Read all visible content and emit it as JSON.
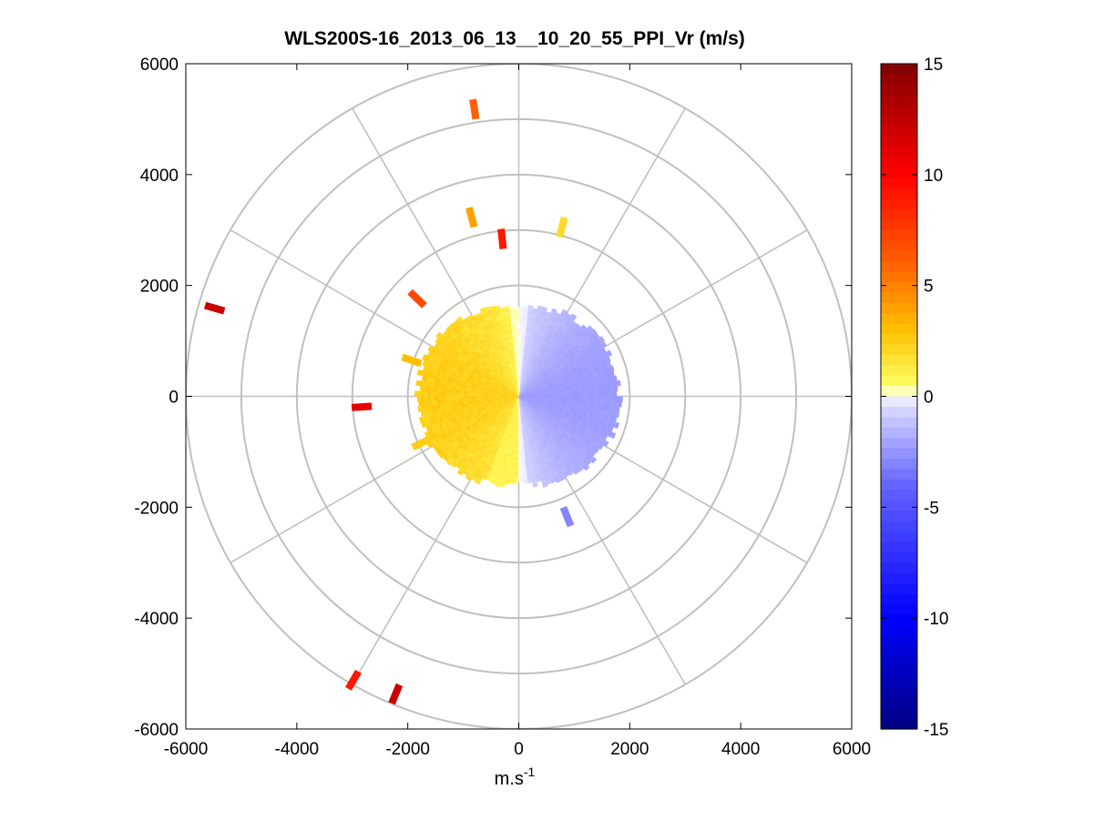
{
  "chart_data": {
    "type": "ppi-polar-scan",
    "title": "WLS200S-16_2013_06_13__10_20_55_PPI_Vr (m/s)",
    "xlabel_base": "m.s",
    "xlabel_sup": "-1",
    "xlim": [
      -6000,
      6000
    ],
    "ylim": [
      -6000,
      6000
    ],
    "xticks": [
      -6000,
      -4000,
      -2000,
      0,
      2000,
      4000,
      6000
    ],
    "yticks": [
      6000,
      4000,
      2000,
      0,
      -2000,
      -4000,
      -6000
    ],
    "polar_grid": {
      "ring_radii": [
        1000,
        2000,
        3000,
        4000,
        5000,
        6000
      ],
      "spoke_angles_deg": [
        0,
        30,
        60,
        90,
        120,
        150,
        180,
        210,
        240,
        270,
        300,
        330
      ]
    },
    "colorbar": {
      "range": [
        -15,
        15
      ],
      "ticks": [
        15,
        10,
        5,
        0,
        -5,
        -10,
        -15
      ],
      "colormap": "blue-white-yellow-red",
      "stops": [
        {
          "v": -15,
          "color": "#000080"
        },
        {
          "v": -10,
          "color": "#0000ff"
        },
        {
          "v": -4,
          "color": "#6464ff"
        },
        {
          "v": -0.4,
          "color": "#dcdcff"
        },
        {
          "v": 0,
          "color": "#ffffff"
        },
        {
          "v": 0.5,
          "color": "#ffff64"
        },
        {
          "v": 3,
          "color": "#ffc000"
        },
        {
          "v": 6,
          "color": "#ff6000"
        },
        {
          "v": 10,
          "color": "#ff0000"
        },
        {
          "v": 15,
          "color": "#800000"
        }
      ]
    },
    "near_field": {
      "max_range_m": 1900,
      "note": "radial velocity approx -2 m/s on eastern half, approx +2 m/s on western half"
    },
    "scattered_cells": [
      {
        "x": -800,
        "y": 5180,
        "v": 6
      },
      {
        "x": -850,
        "y": 3230,
        "v": 4
      },
      {
        "x": -300,
        "y": 2840,
        "v": 9
      },
      {
        "x": 780,
        "y": 3050,
        "v": 2
      },
      {
        "x": -1830,
        "y": 1760,
        "v": 7
      },
      {
        "x": -5480,
        "y": 1590,
        "v": 12
      },
      {
        "x": -2830,
        "y": -190,
        "v": 11
      },
      {
        "x": -2220,
        "y": -5370,
        "v": 12
      },
      {
        "x": -2980,
        "y": -5120,
        "v": 9
      },
      {
        "x": 870,
        "y": -2170,
        "v": -3
      },
      {
        "x": -1930,
        "y": 650,
        "v": 3
      },
      {
        "x": -1750,
        "y": -840,
        "v": 2.5
      }
    ]
  }
}
